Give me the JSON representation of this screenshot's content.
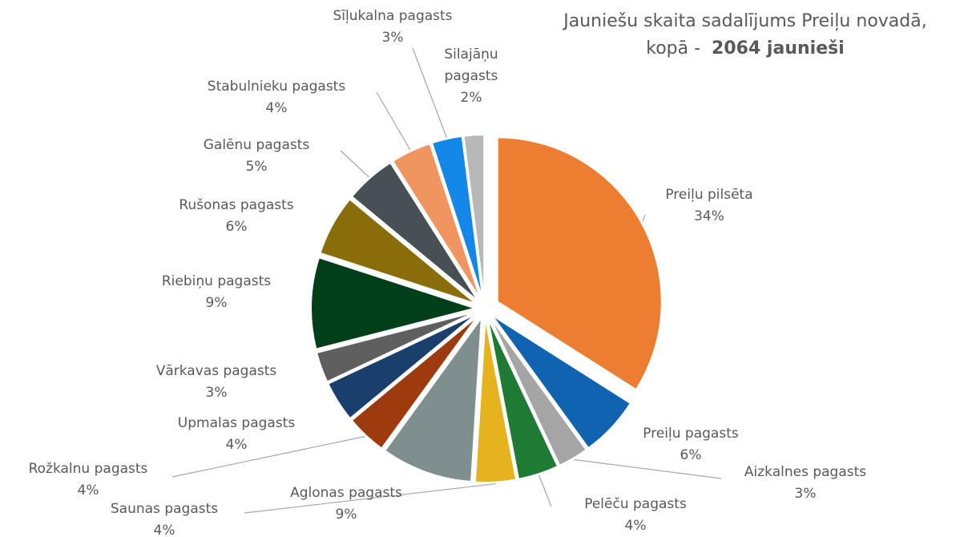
{
  "chart_data": {
    "type": "pie",
    "title": {
      "line1": "Jauniešu skaita sadalījums Preiļu novadā,",
      "line2": "kopā -",
      "emphasis": "2064 jaunieši"
    },
    "categories": [
      "Preiļu pilsēta",
      "Preiļu pagasts",
      "Aizkalnes pagasts",
      "Pelēču pagasts",
      "Saunas pagasts",
      "Aglonas pagasts",
      "Rožkalnu pagasts",
      "Upmalas pagasts",
      "Vārkavas pagasts",
      "Riebiņu pagasts",
      "Rušonas pagasts",
      "Galēnu pagasts",
      "Stabulnieku pagasts",
      "Sīļukalna pagasts",
      "Silajāņu pagasts"
    ],
    "values": [
      34,
      6,
      3,
      4,
      4,
      9,
      4,
      4,
      3,
      9,
      6,
      5,
      4,
      3,
      2
    ],
    "value_labels": [
      "34%",
      "6%",
      "3%",
      "4%",
      "4%",
      "9%",
      "4%",
      "4%",
      "3%",
      "9%",
      "6%",
      "5%",
      "4%",
      "3%",
      "2%"
    ],
    "colors": [
      "#ed7d31",
      "#0f63b0",
      "#a5a5a5",
      "#1e7b33",
      "#e6b31e",
      "#7f8f8f",
      "#9e3b0e",
      "#1a3f6c",
      "#5f5f5f",
      "#003f1a",
      "#8a6d0b",
      "#475054",
      "#f0955f",
      "#1488e8",
      "#b8b8b8"
    ]
  }
}
